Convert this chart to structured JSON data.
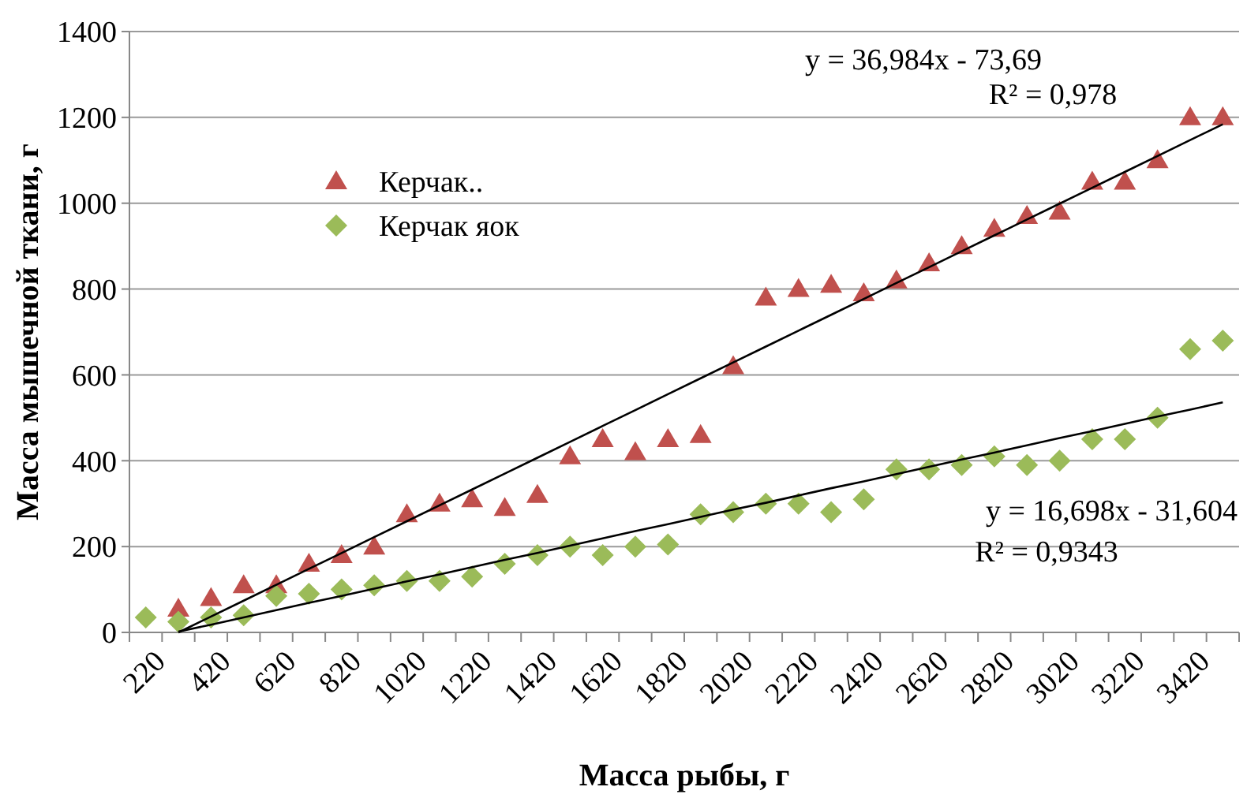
{
  "chart_data": {
    "type": "scatter",
    "xlabel": "Масса рыбы, г",
    "ylabel": "Масса мышечной ткани, г",
    "categories": [
      "220",
      null,
      "420",
      null,
      "620",
      null,
      "820",
      null,
      "1020",
      null,
      "1220",
      null,
      "1420",
      null,
      "1620",
      null,
      "1820",
      null,
      "2020",
      null,
      "2220",
      null,
      "2420",
      null,
      "2620",
      null,
      "2820",
      null,
      "3020",
      null,
      "3220",
      null,
      "3420",
      null
    ],
    "series": [
      {
        "name": "Керчак..",
        "color": "#c0504d",
        "marker": "triangle",
        "values": [
          null,
          55,
          80,
          110,
          110,
          160,
          180,
          200,
          275,
          300,
          310,
          290,
          320,
          410,
          450,
          420,
          450,
          460,
          620,
          780,
          800,
          810,
          790,
          820,
          860,
          900,
          940,
          970,
          980,
          1050,
          1050,
          1100,
          1200,
          1200
        ]
      },
      {
        "name": "Керчак яок",
        "color": "#9bbb59",
        "marker": "diamond",
        "values": [
          35,
          25,
          35,
          40,
          85,
          90,
          100,
          110,
          120,
          120,
          130,
          160,
          180,
          200,
          180,
          200,
          205,
          275,
          280,
          300,
          300,
          280,
          310,
          380,
          380,
          390,
          410,
          390,
          400,
          450,
          450,
          500,
          660,
          680
        ]
      },
      {
        "type": "line",
        "color": "#000000",
        "marker": "none",
        "values": [
          null,
          0,
          37,
          74,
          111,
          148,
          185,
          222,
          259,
          296,
          333,
          370,
          407,
          444,
          481,
          518,
          555,
          592,
          629,
          666,
          703,
          740,
          777,
          814,
          851,
          888,
          925,
          962,
          999,
          1036,
          1073,
          1110,
          1147,
          1184
        ]
      },
      {
        "type": "line",
        "color": "#000000",
        "marker": "none",
        "values": [
          null,
          2,
          18,
          35,
          52,
          69,
          85,
          102,
          119,
          135,
          152,
          169,
          185,
          202,
          219,
          236,
          252,
          269,
          286,
          302,
          319,
          336,
          352,
          369,
          386,
          403,
          419,
          436,
          453,
          469,
          486,
          503,
          519,
          536
        ]
      }
    ],
    "annotations": [
      "y = 36,984x - 73,69",
      "R² = 0,978",
      "y = 16,698x - 31,604",
      "R² = 0,9343"
    ],
    "ylim": [
      0,
      1400
    ],
    "yticks": [
      0,
      200,
      400,
      600,
      800,
      1000,
      1200,
      1400
    ],
    "grid": "y",
    "legend": "top left"
  }
}
